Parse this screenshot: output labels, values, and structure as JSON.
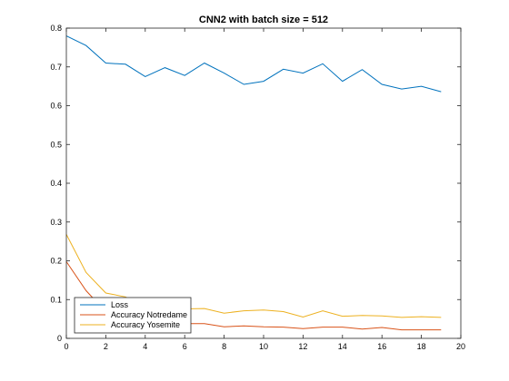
{
  "chart_data": {
    "type": "line",
    "title": "CNN2 with batch size = 512",
    "xlabel": "",
    "ylabel": "",
    "xlim": [
      0,
      20
    ],
    "ylim": [
      0,
      0.8
    ],
    "xticks": [
      "0",
      "2",
      "4",
      "6",
      "8",
      "10",
      "12",
      "14",
      "16",
      "18",
      "20"
    ],
    "yticks": [
      "0",
      "0.1",
      "0.2",
      "0.3",
      "0.4",
      "0.5",
      "0.6",
      "0.7",
      "0.8"
    ],
    "grid": false,
    "legend_position": "bottom-left",
    "x": [
      0,
      1,
      2,
      3,
      4,
      5,
      6,
      7,
      8,
      9,
      10,
      11,
      12,
      13,
      14,
      15,
      16,
      17,
      18,
      19
    ],
    "series": [
      {
        "name": "Loss",
        "color": "#0072BD",
        "values": [
          0.78,
          0.755,
          0.71,
          0.707,
          0.675,
          0.698,
          0.678,
          0.71,
          0.684,
          0.655,
          0.663,
          0.694,
          0.684,
          0.708,
          0.663,
          0.693,
          0.655,
          0.643,
          0.65,
          0.636
        ]
      },
      {
        "name": "Accuracy Notredame",
        "color": "#D95319",
        "values": [
          0.198,
          0.123,
          0.068,
          0.055,
          0.045,
          0.04,
          0.038,
          0.038,
          0.03,
          0.032,
          0.03,
          0.029,
          0.025,
          0.029,
          0.029,
          0.024,
          0.028,
          0.022,
          0.022,
          0.022
        ]
      },
      {
        "name": "Accuracy Yosemite",
        "color": "#EDB120",
        "values": [
          0.268,
          0.17,
          0.117,
          0.107,
          0.077,
          0.078,
          0.076,
          0.077,
          0.065,
          0.071,
          0.073,
          0.069,
          0.055,
          0.071,
          0.057,
          0.059,
          0.058,
          0.054,
          0.056,
          0.054
        ]
      }
    ]
  }
}
